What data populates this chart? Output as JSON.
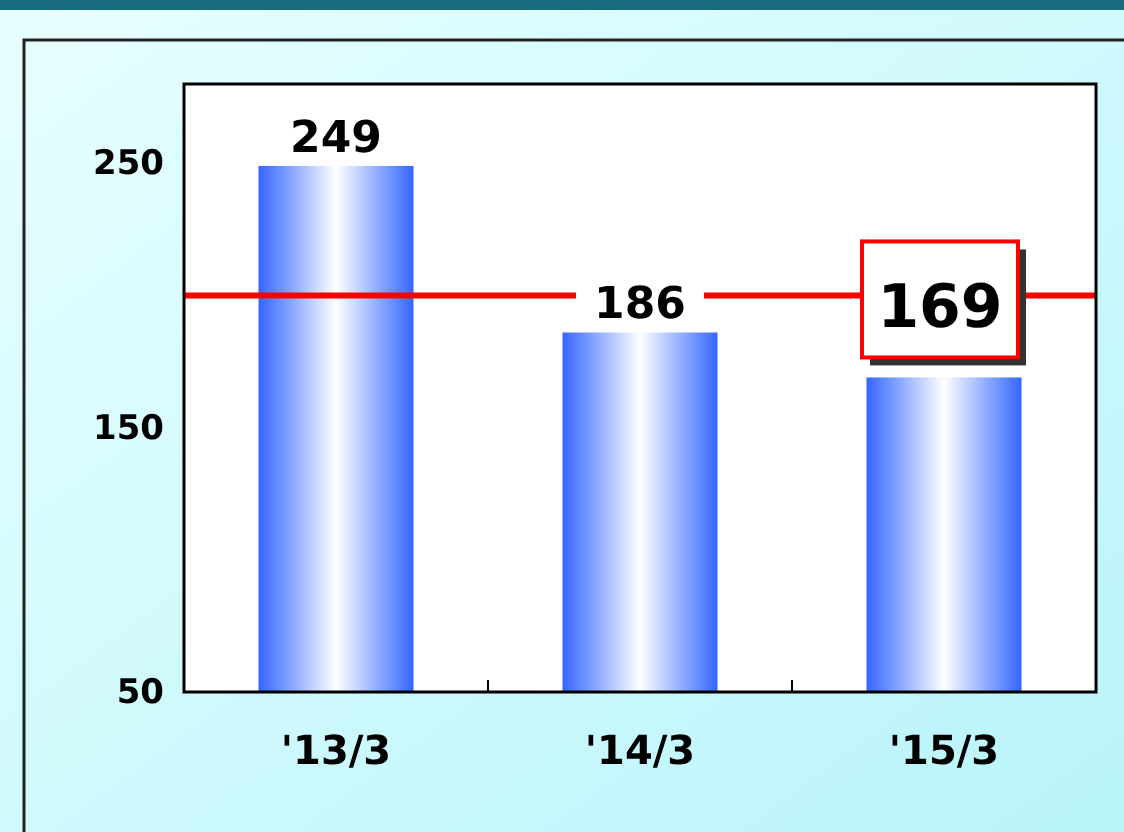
{
  "chart_data": {
    "type": "bar",
    "categories": [
      "'13/3",
      "'14/3",
      "'15/3"
    ],
    "values": [
      249,
      186,
      169
    ],
    "color": "#3366ff",
    "ylim": [
      50,
      280
    ],
    "yticks": [
      50,
      150,
      250
    ],
    "data_labels": true,
    "ref_lines": [
      {
        "axis": "y",
        "value": 200,
        "color": "#ff0000"
      }
    ]
  }
}
